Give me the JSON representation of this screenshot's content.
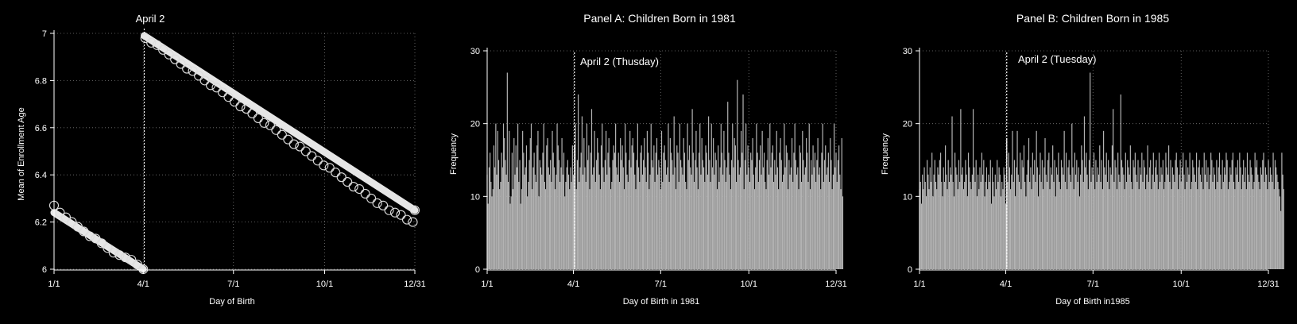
{
  "figure": {
    "background": "#000000",
    "foreground": "#ffffff",
    "bar_color": "#b3b3b3"
  },
  "chart_data": [
    {
      "type": "scatter",
      "title": "",
      "xlabel": "Day of Birth",
      "ylabel": "Mean of Enrollment Age",
      "xlim": [
        1,
        365
      ],
      "ylim": [
        6,
        7
      ],
      "x_ticks": [
        {
          "day": 1,
          "label": "1/1"
        },
        {
          "day": 91,
          "label": "4/1"
        },
        {
          "day": 182,
          "label": "7/1"
        },
        {
          "day": 274,
          "label": "10/1"
        },
        {
          "day": 365,
          "label": "12/31"
        }
      ],
      "y_ticks": [
        6,
        6.2,
        6.4,
        6.6,
        6.8,
        7
      ],
      "grid": true,
      "cutoff": {
        "day": 92,
        "label": "April 2"
      },
      "series": [
        {
          "description": "Mean enrollment age by day of birth (open circles) with fitted line",
          "x": [
            1,
            7,
            13,
            19,
            25,
            31,
            37,
            43,
            49,
            55,
            61,
            67,
            73,
            79,
            85,
            91,
            93,
            99,
            105,
            111,
            117,
            123,
            129,
            135,
            141,
            147,
            153,
            159,
            165,
            171,
            177,
            183,
            189,
            195,
            201,
            207,
            213,
            219,
            225,
            231,
            237,
            243,
            249,
            255,
            261,
            267,
            273,
            279,
            285,
            291,
            297,
            303,
            309,
            315,
            321,
            327,
            333,
            339,
            345,
            351,
            357,
            363,
            365
          ],
          "y": [
            6.27,
            6.24,
            6.22,
            6.2,
            6.18,
            6.16,
            6.14,
            6.13,
            6.11,
            6.09,
            6.07,
            6.06,
            6.05,
            6.04,
            6.02,
            6.0,
            6.98,
            6.96,
            6.95,
            6.93,
            6.91,
            6.89,
            6.87,
            6.85,
            6.84,
            6.82,
            6.8,
            6.78,
            6.77,
            6.75,
            6.73,
            6.71,
            6.69,
            6.68,
            6.66,
            6.64,
            6.62,
            6.61,
            6.59,
            6.57,
            6.55,
            6.53,
            6.52,
            6.5,
            6.48,
            6.46,
            6.44,
            6.43,
            6.41,
            6.39,
            6.37,
            6.35,
            6.34,
            6.32,
            6.3,
            6.28,
            6.27,
            6.25,
            6.24,
            6.23,
            6.21,
            6.2,
            6.25
          ]
        }
      ],
      "fit_segments": [
        {
          "x": [
            1,
            91
          ],
          "y": [
            6.24,
            6.0
          ]
        },
        {
          "x": [
            92,
            365
          ],
          "y": [
            6.99,
            6.25
          ]
        }
      ]
    },
    {
      "type": "bar",
      "title": "Panel A: Children Born in 1981",
      "xlabel": "Day of Birth in 1981",
      "ylabel": "Frequency",
      "xlim": [
        1,
        365
      ],
      "ylim": [
        0,
        30
      ],
      "x_ticks": [
        {
          "day": 1,
          "label": "1/1"
        },
        {
          "day": 91,
          "label": "4/1"
        },
        {
          "day": 182,
          "label": "7/1"
        },
        {
          "day": 274,
          "label": "10/1"
        },
        {
          "day": 365,
          "label": "12/31"
        }
      ],
      "y_ticks": [
        0,
        10,
        20,
        30
      ],
      "grid": true,
      "cutoff": {
        "day": 92,
        "label": "April 2 (Thusday)"
      },
      "values": [
        13,
        9,
        14,
        16,
        12,
        10,
        11,
        17,
        14,
        20,
        13,
        19,
        15,
        11,
        12,
        16,
        14,
        20,
        18,
        15,
        13,
        27,
        12,
        19,
        9,
        10,
        16,
        11,
        18,
        13,
        17,
        14,
        20,
        12,
        15,
        9,
        11,
        19,
        16,
        13,
        14,
        17,
        10,
        12,
        15,
        18,
        20,
        11,
        14,
        16,
        13,
        12,
        17,
        19,
        10,
        15,
        14,
        13,
        16,
        20,
        12,
        11,
        17,
        18,
        14,
        13,
        15,
        12,
        19,
        16,
        14,
        11,
        13,
        20,
        17,
        15,
        12,
        14,
        18,
        13,
        16,
        10,
        12,
        14,
        15,
        13,
        11,
        14,
        12,
        17,
        13,
        17,
        20,
        11,
        15,
        24,
        12,
        14,
        16,
        21,
        13,
        18,
        14,
        12,
        20,
        15,
        17,
        11,
        16,
        22,
        13,
        14,
        19,
        12,
        15,
        18,
        16,
        13,
        11,
        17,
        20,
        14,
        12,
        15,
        19,
        13,
        16,
        18,
        14,
        11,
        12,
        15,
        17,
        16,
        20,
        14,
        13,
        16,
        12,
        18,
        15,
        17,
        14,
        11,
        20,
        16,
        13,
        12,
        15,
        19,
        14,
        17,
        18,
        16,
        13,
        11,
        15,
        20,
        14,
        12,
        16,
        17,
        13,
        15,
        18,
        14,
        12,
        19,
        16,
        11,
        13,
        20,
        15,
        14,
        17,
        12,
        16,
        18,
        13,
        15,
        14,
        11,
        19,
        12,
        16,
        17,
        15,
        13,
        14,
        20,
        12,
        18,
        16,
        15,
        13,
        21,
        14,
        11,
        17,
        16,
        12,
        20,
        15,
        14,
        13,
        18,
        16,
        12,
        11,
        20,
        15,
        17,
        14,
        13,
        22,
        16,
        12,
        15,
        19,
        14,
        11,
        16,
        20,
        13,
        18,
        15,
        14,
        12,
        17,
        16,
        13,
        21,
        15,
        12,
        20,
        14,
        18,
        13,
        16,
        15,
        11,
        17,
        12,
        14,
        20,
        16,
        13,
        19,
        15,
        12,
        14,
        23,
        16,
        13,
        11,
        15,
        20,
        14,
        18,
        17,
        12,
        26,
        15,
        13,
        14,
        19,
        16,
        24,
        11,
        15,
        20,
        13,
        17,
        14,
        12,
        16,
        15,
        18,
        13,
        11,
        14,
        20,
        16,
        12,
        15,
        17,
        13,
        19,
        14,
        16,
        12,
        11,
        15,
        18,
        13,
        20,
        14,
        16,
        17,
        12,
        15,
        13,
        19,
        14,
        11,
        16,
        18,
        15,
        12,
        13,
        20,
        14,
        17,
        16,
        11,
        15,
        13,
        14,
        18,
        12,
        16,
        20,
        15,
        13,
        14,
        11,
        17,
        16,
        12,
        19,
        15,
        13,
        14,
        18,
        16,
        12,
        20,
        11,
        15,
        13,
        17,
        14,
        16,
        12,
        15,
        18,
        13,
        14,
        11,
        16,
        20,
        12,
        15,
        17,
        13,
        14,
        16,
        12,
        18,
        15,
        11,
        13,
        20,
        14,
        16,
        12,
        15,
        17,
        13,
        11,
        18,
        10
      ],
      "bar_colors_note": "bars light gray, cutoff bar white"
    },
    {
      "type": "bar",
      "title": "Panel B: Children Born in 1985",
      "xlabel": "Day of Birth in1985",
      "ylabel": "Frequency",
      "xlim": [
        1,
        365
      ],
      "ylim": [
        0,
        30
      ],
      "x_ticks": [
        {
          "day": 1,
          "label": "1/1"
        },
        {
          "day": 91,
          "label": "4/1"
        },
        {
          "day": 182,
          "label": "7/1"
        },
        {
          "day": 274,
          "label": "10/1"
        },
        {
          "day": 365,
          "label": "12/31"
        }
      ],
      "y_ticks": [
        0,
        10,
        20,
        30
      ],
      "grid": true,
      "cutoff": {
        "day": 92,
        "label": "April 2 (Tuesday)"
      },
      "values": [
        11,
        12,
        9,
        13,
        11,
        14,
        12,
        10,
        15,
        13,
        11,
        14,
        12,
        16,
        10,
        13,
        15,
        12,
        11,
        14,
        13,
        15,
        16,
        12,
        10,
        14,
        12,
        17,
        13,
        11,
        15,
        12,
        14,
        13,
        21,
        12,
        10,
        16,
        14,
        13,
        11,
        15,
        12,
        22,
        13,
        14,
        11,
        12,
        15,
        13,
        10,
        16,
        14,
        12,
        11,
        13,
        22,
        14,
        12,
        15,
        10,
        13,
        11,
        14,
        12,
        16,
        13,
        15,
        10,
        12,
        14,
        11,
        13,
        12,
        15,
        9,
        14,
        12,
        10,
        13,
        11,
        15,
        12,
        14,
        13,
        10,
        12,
        11,
        14,
        13,
        9,
        18,
        12,
        16,
        14,
        11,
        13,
        19,
        12,
        15,
        10,
        14,
        19,
        13,
        12,
        16,
        11,
        15,
        14,
        17,
        12,
        10,
        13,
        15,
        18,
        12,
        14,
        11,
        16,
        13,
        15,
        12,
        19,
        14,
        10,
        13,
        16,
        12,
        15,
        11,
        14,
        18,
        13,
        12,
        15,
        16,
        11,
        14,
        13,
        17,
        12,
        15,
        10,
        14,
        13,
        16,
        12,
        11,
        15,
        14,
        13,
        19,
        12,
        16,
        11,
        14,
        15,
        13,
        12,
        20,
        14,
        11,
        16,
        13,
        15,
        12,
        14,
        10,
        13,
        17,
        15,
        12,
        21,
        14,
        16,
        13,
        11,
        15,
        27,
        12,
        14,
        13,
        16,
        11,
        15,
        12,
        14,
        13,
        17,
        12,
        15,
        11,
        19,
        14,
        13,
        16,
        12,
        15,
        11,
        14,
        13,
        17,
        22,
        12,
        15,
        14,
        11,
        16,
        13,
        12,
        24,
        15,
        14,
        13,
        11,
        16,
        12,
        15,
        14,
        13,
        17,
        12,
        11,
        15,
        14,
        16,
        13,
        12,
        15,
        11,
        14,
        13,
        16,
        12,
        15,
        14,
        11,
        13,
        17,
        12,
        14,
        15,
        11,
        13,
        16,
        12,
        14,
        15,
        13,
        11,
        16,
        12,
        14,
        13,
        15,
        11,
        12,
        16,
        14,
        13,
        17,
        12,
        15,
        11,
        14,
        13,
        12,
        15,
        16,
        14,
        11,
        13,
        15,
        12,
        14,
        16,
        13,
        11,
        15,
        12,
        14,
        13,
        16,
        11,
        12,
        15,
        14,
        13,
        12,
        16,
        11,
        14,
        15,
        13,
        12,
        14,
        11,
        16,
        13,
        15,
        12,
        14,
        11,
        13,
        16,
        15,
        12,
        14,
        13,
        11,
        15,
        12,
        14,
        16,
        13,
        11,
        15,
        12,
        14,
        13,
        16,
        15,
        11,
        12,
        14,
        13,
        15,
        16,
        12,
        11,
        14,
        13,
        15,
        12,
        16,
        14,
        11,
        13,
        15,
        12,
        14,
        11,
        16,
        13,
        12,
        15,
        14,
        13,
        11,
        12,
        16,
        14,
        15,
        13,
        12,
        11,
        14,
        13,
        15,
        16,
        12,
        14,
        13,
        11,
        15,
        12,
        14,
        13,
        12,
        16,
        11,
        15,
        14,
        13,
        12,
        11,
        10,
        8,
        16,
        13,
        11
      ],
      "bar_colors_note": "bars light gray, cutoff bar white"
    }
  ]
}
